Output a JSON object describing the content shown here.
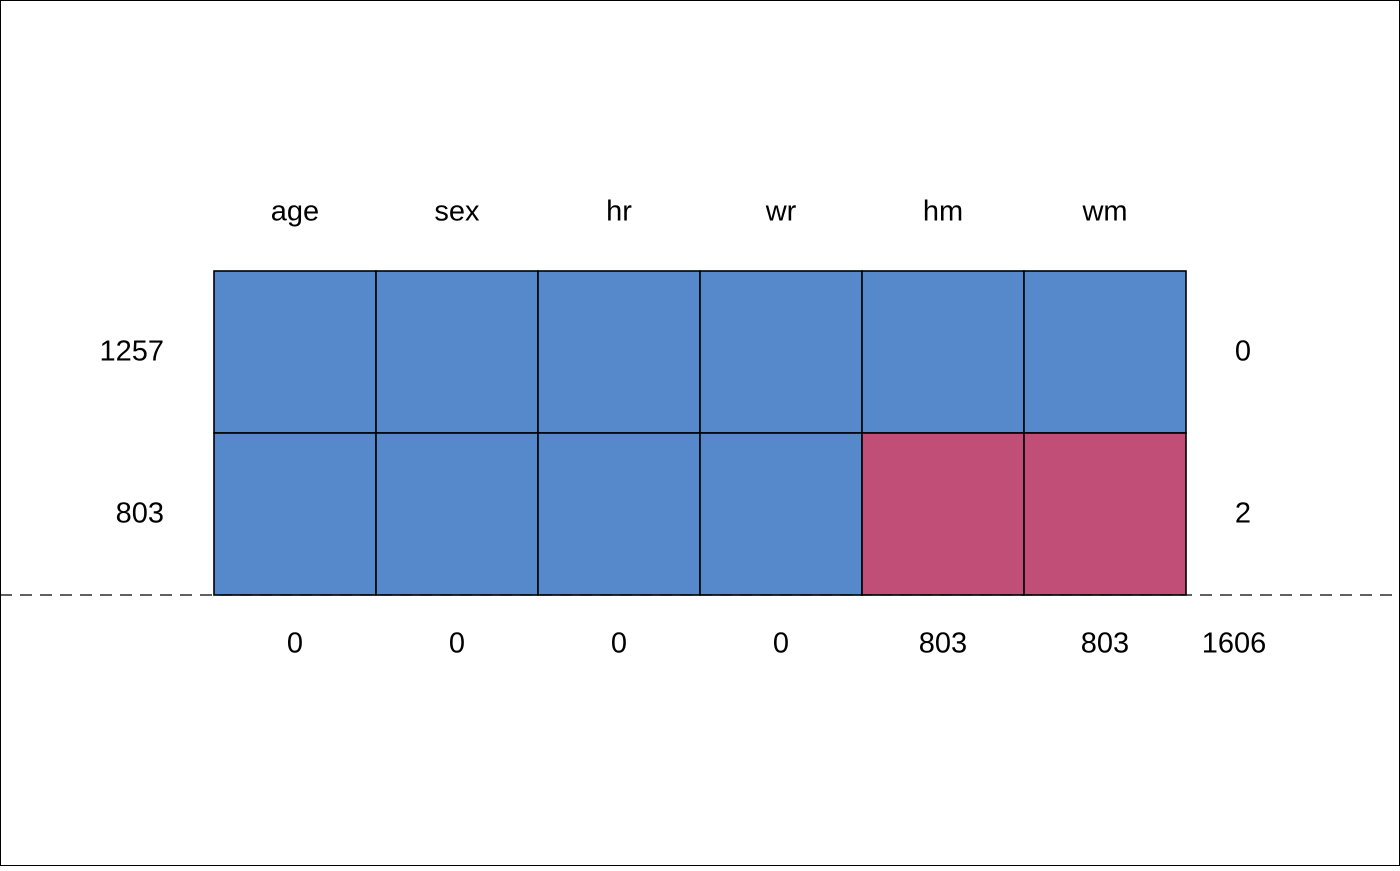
{
  "colors": {
    "observed": "#5589CB",
    "missing": "#C04E77",
    "border": "#000000",
    "background": "#FFFFFF"
  },
  "chart_data": {
    "type": "heatmap",
    "title": "",
    "variables": [
      "age",
      "sex",
      "hr",
      "wr",
      "hm",
      "wm"
    ],
    "patterns": [
      {
        "count": "1257",
        "missing_in_pattern": "0",
        "cells": [
          "observed",
          "observed",
          "observed",
          "observed",
          "observed",
          "observed"
        ]
      },
      {
        "count": "803",
        "missing_in_pattern": "2",
        "cells": [
          "observed",
          "observed",
          "observed",
          "observed",
          "missing",
          "missing"
        ]
      }
    ],
    "missing_per_variable": [
      "0",
      "0",
      "0",
      "0",
      "803",
      "803"
    ],
    "total_missing": "1606"
  }
}
